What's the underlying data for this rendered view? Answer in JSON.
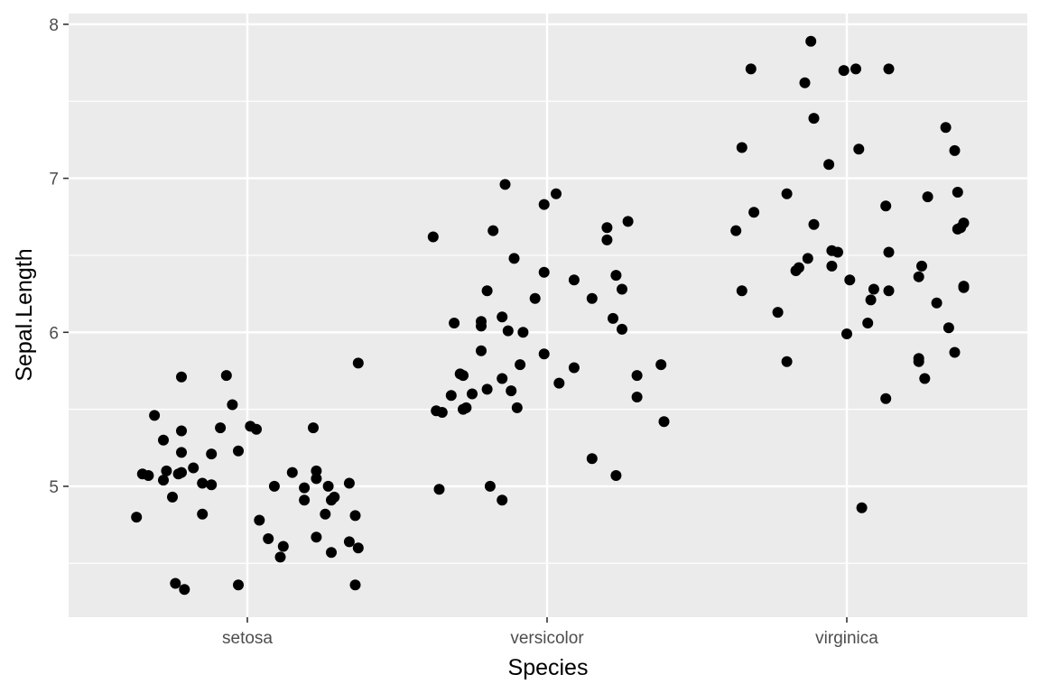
{
  "chart_data": {
    "type": "scatter",
    "title": "",
    "xlabel": "Species",
    "ylabel": "Sepal.Length",
    "categories": [
      "setosa",
      "versicolor",
      "virginica"
    ],
    "ylim": [
      4.15,
      8.07
    ],
    "yticks": [
      5,
      6,
      7,
      8
    ],
    "grid": true,
    "legend": "none",
    "colors": {
      "panel": "#ebebeb",
      "grid": "#ffffff",
      "point": "#000000",
      "tick": "#4d4d4d",
      "title": "#000000"
    },
    "points": [
      {
        "x": "setosa",
        "dx": -0.37,
        "y": 4.8
      },
      {
        "x": "setosa",
        "dx": -0.35,
        "y": 5.08
      },
      {
        "x": "setosa",
        "dx": -0.33,
        "y": 5.07
      },
      {
        "x": "setosa",
        "dx": -0.31,
        "y": 5.46
      },
      {
        "x": "setosa",
        "dx": -0.28,
        "y": 5.3
      },
      {
        "x": "setosa",
        "dx": -0.28,
        "y": 5.04
      },
      {
        "x": "setosa",
        "dx": -0.27,
        "y": 5.1
      },
      {
        "x": "setosa",
        "dx": -0.25,
        "y": 4.93
      },
      {
        "x": "setosa",
        "dx": -0.24,
        "y": 4.37
      },
      {
        "x": "setosa",
        "dx": -0.23,
        "y": 5.08
      },
      {
        "x": "setosa",
        "dx": -0.22,
        "y": 5.71
      },
      {
        "x": "setosa",
        "dx": -0.22,
        "y": 5.36
      },
      {
        "x": "setosa",
        "dx": -0.22,
        "y": 5.22
      },
      {
        "x": "setosa",
        "dx": -0.22,
        "y": 5.09
      },
      {
        "x": "setosa",
        "dx": -0.21,
        "y": 4.33
      },
      {
        "x": "setosa",
        "dx": -0.18,
        "y": 5.12
      },
      {
        "x": "setosa",
        "dx": -0.15,
        "y": 5.02
      },
      {
        "x": "setosa",
        "dx": -0.15,
        "y": 4.82
      },
      {
        "x": "setosa",
        "dx": -0.12,
        "y": 5.21
      },
      {
        "x": "setosa",
        "dx": -0.12,
        "y": 5.01
      },
      {
        "x": "setosa",
        "dx": -0.09,
        "y": 5.38
      },
      {
        "x": "setosa",
        "dx": -0.07,
        "y": 5.72
      },
      {
        "x": "setosa",
        "dx": -0.05,
        "y": 5.53
      },
      {
        "x": "setosa",
        "dx": -0.03,
        "y": 5.23
      },
      {
        "x": "setosa",
        "dx": -0.03,
        "y": 4.36
      },
      {
        "x": "setosa",
        "dx": 0.01,
        "y": 5.39
      },
      {
        "x": "setosa",
        "dx": 0.03,
        "y": 5.37
      },
      {
        "x": "setosa",
        "dx": 0.04,
        "y": 4.78
      },
      {
        "x": "setosa",
        "dx": 0.07,
        "y": 4.66
      },
      {
        "x": "setosa",
        "dx": 0.09,
        "y": 5.0
      },
      {
        "x": "setosa",
        "dx": 0.11,
        "y": 4.54
      },
      {
        "x": "setosa",
        "dx": 0.12,
        "y": 4.61
      },
      {
        "x": "setosa",
        "dx": 0.15,
        "y": 5.09
      },
      {
        "x": "setosa",
        "dx": 0.19,
        "y": 4.91
      },
      {
        "x": "setosa",
        "dx": 0.19,
        "y": 4.99
      },
      {
        "x": "setosa",
        "dx": 0.22,
        "y": 5.38
      },
      {
        "x": "setosa",
        "dx": 0.23,
        "y": 5.05
      },
      {
        "x": "setosa",
        "dx": 0.23,
        "y": 5.1
      },
      {
        "x": "setosa",
        "dx": 0.23,
        "y": 4.67
      },
      {
        "x": "setosa",
        "dx": 0.26,
        "y": 4.82
      },
      {
        "x": "setosa",
        "dx": 0.27,
        "y": 5.0
      },
      {
        "x": "setosa",
        "dx": 0.28,
        "y": 4.91
      },
      {
        "x": "setosa",
        "dx": 0.28,
        "y": 4.57
      },
      {
        "x": "setosa",
        "dx": 0.29,
        "y": 4.93
      },
      {
        "x": "setosa",
        "dx": 0.34,
        "y": 5.02
      },
      {
        "x": "setosa",
        "dx": 0.34,
        "y": 4.64
      },
      {
        "x": "setosa",
        "dx": 0.36,
        "y": 4.81
      },
      {
        "x": "setosa",
        "dx": 0.36,
        "y": 4.36
      },
      {
        "x": "setosa",
        "dx": 0.37,
        "y": 5.8
      },
      {
        "x": "setosa",
        "dx": 0.37,
        "y": 4.6
      },
      {
        "x": "versicolor",
        "dx": -0.38,
        "y": 6.62
      },
      {
        "x": "versicolor",
        "dx": -0.37,
        "y": 5.49
      },
      {
        "x": "versicolor",
        "dx": -0.36,
        "y": 4.98
      },
      {
        "x": "versicolor",
        "dx": -0.35,
        "y": 5.48
      },
      {
        "x": "versicolor",
        "dx": -0.32,
        "y": 5.59
      },
      {
        "x": "versicolor",
        "dx": -0.31,
        "y": 6.06
      },
      {
        "x": "versicolor",
        "dx": -0.29,
        "y": 5.73
      },
      {
        "x": "versicolor",
        "dx": -0.28,
        "y": 5.72
      },
      {
        "x": "versicolor",
        "dx": -0.28,
        "y": 5.5
      },
      {
        "x": "versicolor",
        "dx": -0.27,
        "y": 5.51
      },
      {
        "x": "versicolor",
        "dx": -0.25,
        "y": 5.6
      },
      {
        "x": "versicolor",
        "dx": -0.22,
        "y": 5.88
      },
      {
        "x": "versicolor",
        "dx": -0.22,
        "y": 6.04
      },
      {
        "x": "versicolor",
        "dx": -0.22,
        "y": 6.07
      },
      {
        "x": "versicolor",
        "dx": -0.2,
        "y": 6.27
      },
      {
        "x": "versicolor",
        "dx": -0.2,
        "y": 5.63
      },
      {
        "x": "versicolor",
        "dx": -0.19,
        "y": 5.0
      },
      {
        "x": "versicolor",
        "dx": -0.18,
        "y": 6.66
      },
      {
        "x": "versicolor",
        "dx": -0.15,
        "y": 4.91
      },
      {
        "x": "versicolor",
        "dx": -0.15,
        "y": 5.7
      },
      {
        "x": "versicolor",
        "dx": -0.15,
        "y": 6.1
      },
      {
        "x": "versicolor",
        "dx": -0.14,
        "y": 6.96
      },
      {
        "x": "versicolor",
        "dx": -0.13,
        "y": 6.01
      },
      {
        "x": "versicolor",
        "dx": -0.12,
        "y": 5.62
      },
      {
        "x": "versicolor",
        "dx": -0.11,
        "y": 6.48
      },
      {
        "x": "versicolor",
        "dx": -0.1,
        "y": 5.51
      },
      {
        "x": "versicolor",
        "dx": -0.09,
        "y": 5.79
      },
      {
        "x": "versicolor",
        "dx": -0.08,
        "y": 6.0
      },
      {
        "x": "versicolor",
        "dx": -0.04,
        "y": 6.22
      },
      {
        "x": "versicolor",
        "dx": -0.01,
        "y": 5.86
      },
      {
        "x": "versicolor",
        "dx": -0.01,
        "y": 6.39
      },
      {
        "x": "versicolor",
        "dx": -0.01,
        "y": 6.83
      },
      {
        "x": "versicolor",
        "dx": 0.03,
        "y": 6.9
      },
      {
        "x": "versicolor",
        "dx": 0.04,
        "y": 5.67
      },
      {
        "x": "versicolor",
        "dx": 0.09,
        "y": 5.77
      },
      {
        "x": "versicolor",
        "dx": 0.09,
        "y": 6.34
      },
      {
        "x": "versicolor",
        "dx": 0.15,
        "y": 6.22
      },
      {
        "x": "versicolor",
        "dx": 0.15,
        "y": 5.18
      },
      {
        "x": "versicolor",
        "dx": 0.2,
        "y": 6.68
      },
      {
        "x": "versicolor",
        "dx": 0.2,
        "y": 6.6
      },
      {
        "x": "versicolor",
        "dx": 0.22,
        "y": 6.09
      },
      {
        "x": "versicolor",
        "dx": 0.23,
        "y": 6.37
      },
      {
        "x": "versicolor",
        "dx": 0.23,
        "y": 5.07
      },
      {
        "x": "versicolor",
        "dx": 0.25,
        "y": 6.02
      },
      {
        "x": "versicolor",
        "dx": 0.25,
        "y": 6.28
      },
      {
        "x": "versicolor",
        "dx": 0.27,
        "y": 6.72
      },
      {
        "x": "versicolor",
        "dx": 0.3,
        "y": 5.72
      },
      {
        "x": "versicolor",
        "dx": 0.3,
        "y": 5.58
      },
      {
        "x": "versicolor",
        "dx": 0.38,
        "y": 5.79
      },
      {
        "x": "versicolor",
        "dx": 0.39,
        "y": 5.42
      },
      {
        "x": "virginica",
        "dx": -0.37,
        "y": 6.66
      },
      {
        "x": "virginica",
        "dx": -0.35,
        "y": 7.2
      },
      {
        "x": "virginica",
        "dx": -0.35,
        "y": 6.27
      },
      {
        "x": "virginica",
        "dx": -0.32,
        "y": 7.71
      },
      {
        "x": "virginica",
        "dx": -0.31,
        "y": 6.78
      },
      {
        "x": "virginica",
        "dx": -0.23,
        "y": 6.13
      },
      {
        "x": "virginica",
        "dx": -0.2,
        "y": 6.9
      },
      {
        "x": "virginica",
        "dx": -0.2,
        "y": 5.81
      },
      {
        "x": "virginica",
        "dx": -0.17,
        "y": 6.4
      },
      {
        "x": "virginica",
        "dx": -0.16,
        "y": 6.42
      },
      {
        "x": "virginica",
        "dx": -0.14,
        "y": 7.62
      },
      {
        "x": "virginica",
        "dx": -0.13,
        "y": 6.48
      },
      {
        "x": "virginica",
        "dx": -0.12,
        "y": 7.89
      },
      {
        "x": "virginica",
        "dx": -0.11,
        "y": 7.39
      },
      {
        "x": "virginica",
        "dx": -0.11,
        "y": 6.7
      },
      {
        "x": "virginica",
        "dx": -0.06,
        "y": 7.09
      },
      {
        "x": "virginica",
        "dx": -0.05,
        "y": 6.53
      },
      {
        "x": "virginica",
        "dx": -0.05,
        "y": 6.43
      },
      {
        "x": "virginica",
        "dx": -0.03,
        "y": 6.52
      },
      {
        "x": "virginica",
        "dx": -0.01,
        "y": 7.7
      },
      {
        "x": "virginica",
        "dx": 0.0,
        "y": 5.99
      },
      {
        "x": "virginica",
        "dx": 0.01,
        "y": 6.34
      },
      {
        "x": "virginica",
        "dx": 0.03,
        "y": 7.71
      },
      {
        "x": "virginica",
        "dx": 0.04,
        "y": 7.19
      },
      {
        "x": "virginica",
        "dx": 0.05,
        "y": 4.86
      },
      {
        "x": "virginica",
        "dx": 0.07,
        "y": 6.06
      },
      {
        "x": "virginica",
        "dx": 0.08,
        "y": 6.21
      },
      {
        "x": "virginica",
        "dx": 0.09,
        "y": 6.28
      },
      {
        "x": "virginica",
        "dx": 0.13,
        "y": 6.82
      },
      {
        "x": "virginica",
        "dx": 0.13,
        "y": 5.57
      },
      {
        "x": "virginica",
        "dx": 0.14,
        "y": 6.52
      },
      {
        "x": "virginica",
        "dx": 0.14,
        "y": 7.71
      },
      {
        "x": "virginica",
        "dx": 0.14,
        "y": 6.27
      },
      {
        "x": "virginica",
        "dx": 0.24,
        "y": 6.36
      },
      {
        "x": "virginica",
        "dx": 0.24,
        "y": 5.83
      },
      {
        "x": "virginica",
        "dx": 0.24,
        "y": 5.81
      },
      {
        "x": "virginica",
        "dx": 0.25,
        "y": 6.43
      },
      {
        "x": "virginica",
        "dx": 0.26,
        "y": 5.7
      },
      {
        "x": "virginica",
        "dx": 0.27,
        "y": 6.88
      },
      {
        "x": "virginica",
        "dx": 0.3,
        "y": 6.19
      },
      {
        "x": "virginica",
        "dx": 0.33,
        "y": 7.33
      },
      {
        "x": "virginica",
        "dx": 0.34,
        "y": 6.03
      },
      {
        "x": "virginica",
        "dx": 0.36,
        "y": 5.87
      },
      {
        "x": "virginica",
        "dx": 0.36,
        "y": 7.18
      },
      {
        "x": "virginica",
        "dx": 0.37,
        "y": 6.91
      },
      {
        "x": "virginica",
        "dx": 0.37,
        "y": 6.67
      },
      {
        "x": "virginica",
        "dx": 0.38,
        "y": 6.68
      },
      {
        "x": "virginica",
        "dx": 0.39,
        "y": 6.71
      },
      {
        "x": "virginica",
        "dx": 0.39,
        "y": 6.29
      },
      {
        "x": "virginica",
        "dx": 0.39,
        "y": 6.3
      }
    ]
  }
}
